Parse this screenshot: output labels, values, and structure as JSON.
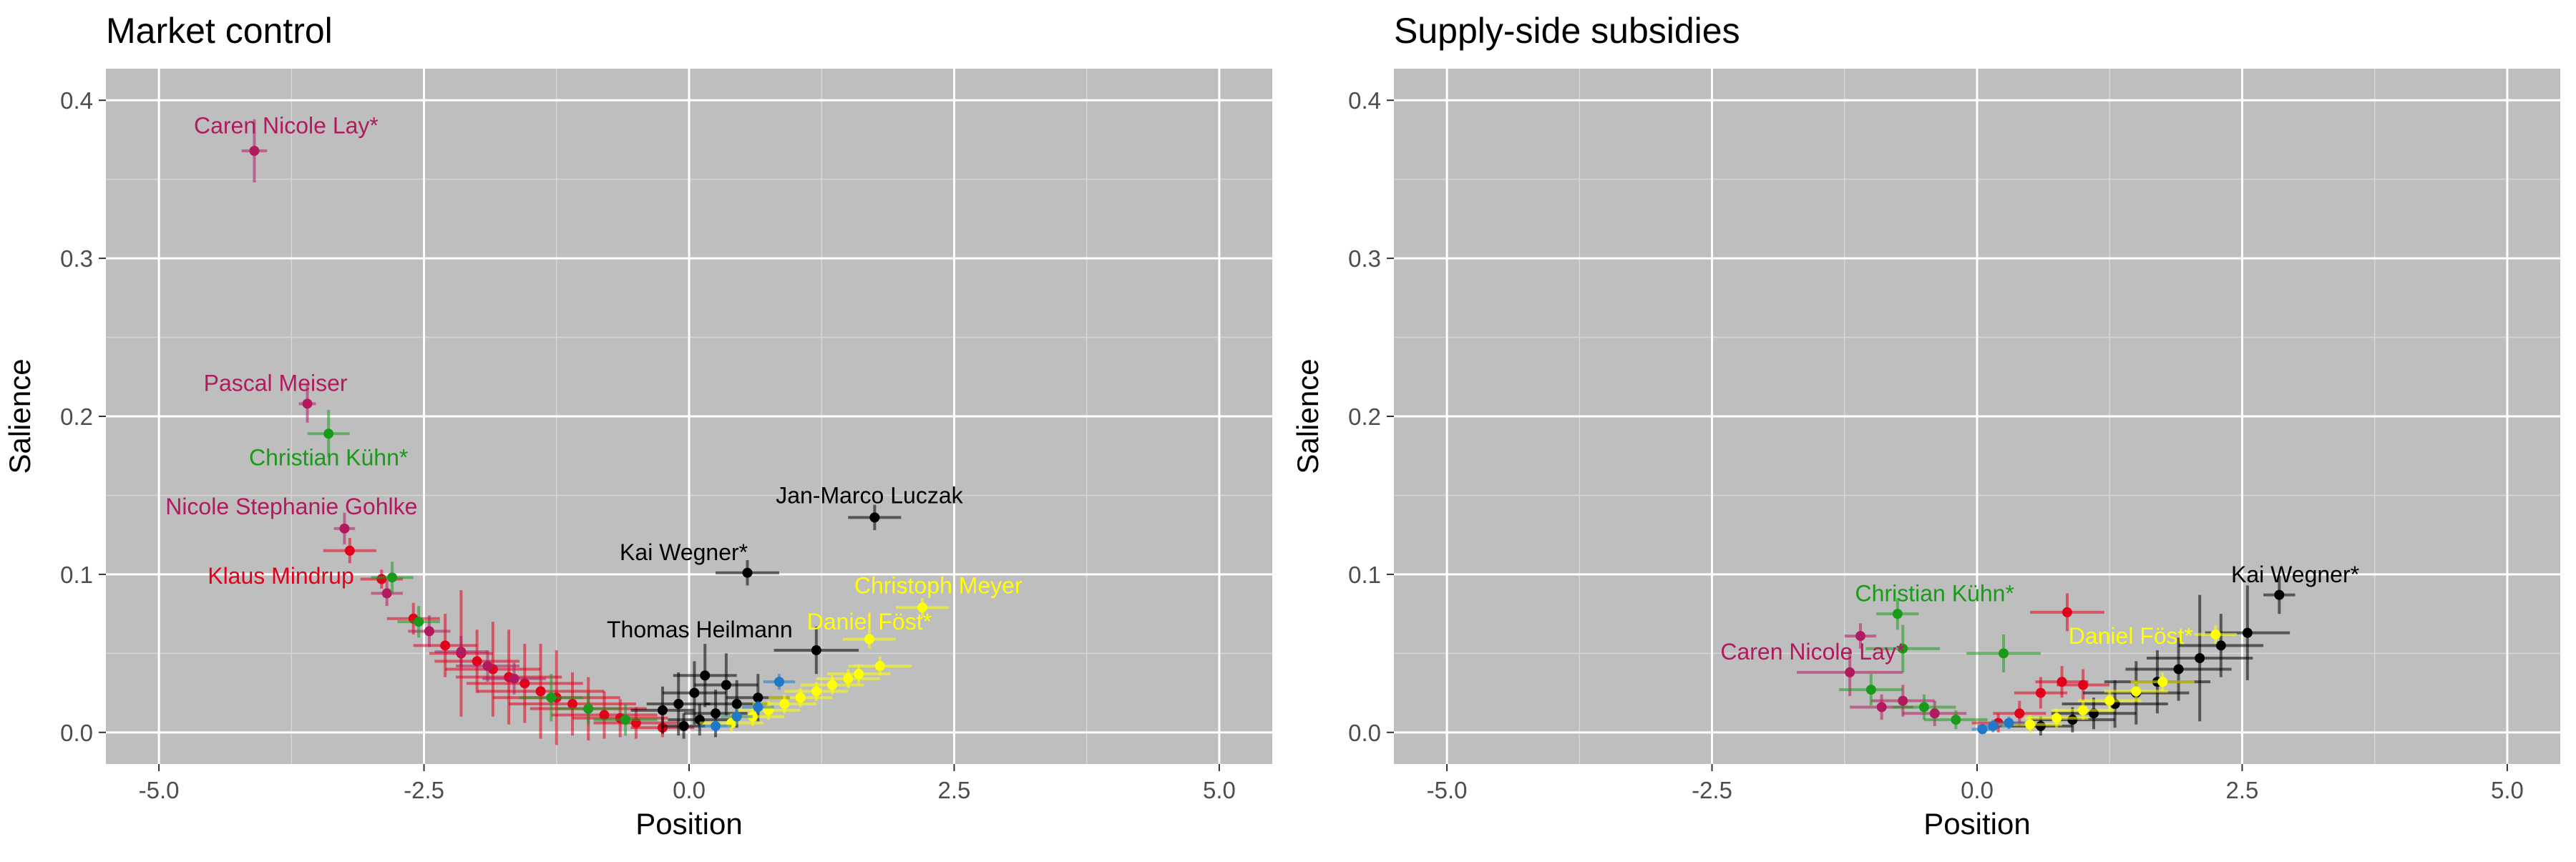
{
  "chart_data": [
    {
      "type": "scatter",
      "title": "Market control",
      "xlabel": "Position",
      "ylabel": "Salience",
      "xlim": [
        -5.5,
        5.5
      ],
      "ylim": [
        -0.02,
        0.42
      ],
      "xticks": [
        -5.0,
        -2.5,
        0.0,
        2.5,
        5.0
      ],
      "xtick_labels": [
        "-5.0",
        "-2.5",
        "0.0",
        "2.5",
        "5.0"
      ],
      "yticks": [
        0.0,
        0.1,
        0.2,
        0.3,
        0.4
      ],
      "ytick_labels": [
        "0.0",
        "0.1",
        "0.2",
        "0.3",
        "0.4"
      ],
      "grid": true,
      "background": "#bebebe",
      "series": [
        {
          "color": "#e3001b",
          "points": [
            [
              -3.2,
              0.115,
              0.25,
              0.008
            ],
            [
              -2.9,
              0.097,
              0.2,
              0.006
            ],
            [
              -2.6,
              0.072,
              0.25,
              0.01
            ],
            [
              -2.3,
              0.055,
              0.3,
              0.02
            ],
            [
              -2.0,
              0.045,
              0.4,
              0.02
            ],
            [
              -1.7,
              0.035,
              0.5,
              0.03
            ],
            [
              -1.4,
              0.026,
              0.6,
              0.03
            ],
            [
              -1.1,
              0.018,
              0.6,
              0.02
            ],
            [
              -0.8,
              0.011,
              0.5,
              0.015
            ],
            [
              -0.5,
              0.006,
              0.4,
              0.01
            ],
            [
              -0.25,
              0.003,
              0.3,
              0.006
            ],
            [
              -2.15,
              0.05,
              0.3,
              0.04
            ],
            [
              -1.85,
              0.04,
              0.45,
              0.03
            ],
            [
              -1.55,
              0.031,
              0.55,
              0.025
            ],
            [
              -1.25,
              0.022,
              0.6,
              0.03
            ],
            [
              -0.95,
              0.015,
              0.55,
              0.02
            ],
            [
              -0.65,
              0.009,
              0.45,
              0.012
            ]
          ]
        },
        {
          "color": "#b3195f",
          "points": [
            [
              -4.1,
              0.368,
              0.12,
              0.02
            ],
            [
              -3.6,
              0.208,
              0.08,
              0.012
            ],
            [
              -3.25,
              0.129,
              0.1,
              0.01
            ],
            [
              -2.85,
              0.088,
              0.15,
              0.008
            ],
            [
              -2.45,
              0.064,
              0.2,
              0.01
            ],
            [
              -2.15,
              0.051,
              0.25,
              0.01
            ],
            [
              -1.9,
              0.042,
              0.3,
              0.01
            ],
            [
              -1.65,
              0.034,
              0.3,
              0.01
            ]
          ]
        },
        {
          "color": "#1a9a1a",
          "points": [
            [
              -3.4,
              0.189,
              0.2,
              0.015
            ],
            [
              -2.8,
              0.098,
              0.2,
              0.01
            ],
            [
              -2.55,
              0.07,
              0.2,
              0.01
            ],
            [
              -1.3,
              0.022,
              0.3,
              0.015
            ],
            [
              -0.95,
              0.015,
              0.3,
              0.01
            ],
            [
              -0.6,
              0.008,
              0.3,
              0.01
            ]
          ]
        },
        {
          "color": "#000000",
          "points": [
            [
              1.75,
              0.136,
              0.25,
              0.008
            ],
            [
              0.55,
              0.101,
              0.3,
              0.008
            ],
            [
              1.2,
              0.052,
              0.4,
              0.015
            ],
            [
              0.15,
              0.036,
              0.3,
              0.02
            ],
            [
              0.35,
              0.03,
              0.3,
              0.02
            ],
            [
              0.05,
              0.025,
              0.3,
              0.02
            ],
            [
              -0.1,
              0.018,
              0.3,
              0.02
            ],
            [
              0.25,
              0.012,
              0.3,
              0.015
            ],
            [
              -0.25,
              0.014,
              0.3,
              0.015
            ],
            [
              0.45,
              0.018,
              0.3,
              0.015
            ],
            [
              0.65,
              0.022,
              0.3,
              0.015
            ],
            [
              0.1,
              0.008,
              0.3,
              0.01
            ],
            [
              -0.05,
              0.004,
              0.2,
              0.008
            ]
          ]
        },
        {
          "color": "#ffff00",
          "points": [
            [
              2.2,
              0.079,
              0.25,
              0.006
            ],
            [
              1.7,
              0.059,
              0.25,
              0.006
            ],
            [
              1.8,
              0.042,
              0.3,
              0.006
            ],
            [
              1.5,
              0.034,
              0.3,
              0.006
            ],
            [
              1.2,
              0.026,
              0.3,
              0.006
            ],
            [
              0.9,
              0.018,
              0.3,
              0.006
            ],
            [
              0.6,
              0.01,
              0.3,
              0.006
            ],
            [
              0.4,
              0.006,
              0.3,
              0.006
            ],
            [
              0.75,
              0.014,
              0.3,
              0.006
            ],
            [
              1.05,
              0.022,
              0.3,
              0.006
            ],
            [
              1.35,
              0.03,
              0.3,
              0.006
            ],
            [
              1.6,
              0.037,
              0.3,
              0.006
            ]
          ]
        },
        {
          "color": "#1f78c8",
          "points": [
            [
              0.85,
              0.032,
              0.15,
              0.005
            ],
            [
              0.45,
              0.01,
              0.15,
              0.005
            ],
            [
              0.25,
              0.004,
              0.15,
              0.004
            ],
            [
              0.65,
              0.016,
              0.15,
              0.004
            ]
          ]
        }
      ],
      "annotations": [
        {
          "text": "Caren Nicole Lay*",
          "x": -3.8,
          "y": 0.384,
          "color": "#b3195f"
        },
        {
          "text": "Pascal Meiser",
          "x": -3.9,
          "y": 0.221,
          "color": "#b3195f"
        },
        {
          "text": "Christian Kühn*",
          "x": -3.4,
          "y": 0.174,
          "color": "#1a9a1a"
        },
        {
          "text": "Nicole Stephanie Gohlke",
          "x": -3.75,
          "y": 0.143,
          "color": "#b3195f"
        },
        {
          "text": "Klaus Mindrup",
          "x": -3.85,
          "y": 0.099,
          "color": "#e3001b"
        },
        {
          "text": "Jan-Marco Luczak",
          "x": 1.7,
          "y": 0.15,
          "color": "#000000"
        },
        {
          "text": "Kai Wegner*",
          "x": -0.05,
          "y": 0.114,
          "color": "#000000"
        },
        {
          "text": "Thomas Heilmann",
          "x": 0.1,
          "y": 0.065,
          "color": "#000000"
        },
        {
          "text": "Christoph Meyer",
          "x": 2.35,
          "y": 0.093,
          "color": "#ffff00"
        },
        {
          "text": "Daniel Föst*",
          "x": 1.7,
          "y": 0.07,
          "color": "#ffff00"
        }
      ]
    },
    {
      "type": "scatter",
      "title": "Supply-side subsidies",
      "xlabel": "Position",
      "ylabel": "Salience",
      "xlim": [
        -5.5,
        5.5
      ],
      "ylim": [
        -0.02,
        0.42
      ],
      "xticks": [
        -5.0,
        -2.5,
        0.0,
        2.5,
        5.0
      ],
      "xtick_labels": [
        "-5.0",
        "-2.5",
        "0.0",
        "2.5",
        "5.0"
      ],
      "yticks": [
        0.0,
        0.1,
        0.2,
        0.3,
        0.4
      ],
      "ytick_labels": [
        "0.0",
        "0.1",
        "0.2",
        "0.3",
        "0.4"
      ],
      "grid": true,
      "background": "#bebebe",
      "series": [
        {
          "color": "#e3001b",
          "points": [
            [
              0.85,
              0.076,
              0.35,
              0.012
            ],
            [
              0.8,
              0.032,
              0.25,
              0.01
            ],
            [
              0.6,
              0.025,
              0.25,
              0.01
            ],
            [
              0.4,
              0.012,
              0.25,
              0.008
            ],
            [
              0.2,
              0.006,
              0.25,
              0.006
            ],
            [
              1.0,
              0.03,
              0.25,
              0.01
            ]
          ]
        },
        {
          "color": "#b3195f",
          "points": [
            [
              -1.1,
              0.061,
              0.15,
              0.008
            ],
            [
              -1.2,
              0.038,
              0.5,
              0.015
            ],
            [
              -0.7,
              0.02,
              0.3,
              0.01
            ],
            [
              -0.4,
              0.012,
              0.3,
              0.008
            ],
            [
              -0.9,
              0.016,
              0.3,
              0.008
            ]
          ]
        },
        {
          "color": "#1a9a1a",
          "points": [
            [
              -0.75,
              0.075,
              0.2,
              0.01
            ],
            [
              -0.7,
              0.053,
              0.35,
              0.015
            ],
            [
              0.25,
              0.05,
              0.35,
              0.012
            ],
            [
              -1.0,
              0.027,
              0.3,
              0.01
            ],
            [
              -0.5,
              0.016,
              0.3,
              0.008
            ],
            [
              -0.2,
              0.008,
              0.3,
              0.006
            ]
          ]
        },
        {
          "color": "#000000",
          "points": [
            [
              2.85,
              0.087,
              0.15,
              0.012
            ],
            [
              2.55,
              0.063,
              0.4,
              0.03
            ],
            [
              2.3,
              0.055,
              0.4,
              0.02
            ],
            [
              2.1,
              0.047,
              0.5,
              0.04
            ],
            [
              1.9,
              0.04,
              0.5,
              0.02
            ],
            [
              1.7,
              0.032,
              0.5,
              0.02
            ],
            [
              1.5,
              0.025,
              0.5,
              0.02
            ],
            [
              1.3,
              0.018,
              0.5,
              0.015
            ],
            [
              1.1,
              0.012,
              0.4,
              0.01
            ],
            [
              0.9,
              0.008,
              0.4,
              0.008
            ],
            [
              0.6,
              0.004,
              0.3,
              0.006
            ]
          ]
        },
        {
          "color": "#ffff00",
          "points": [
            [
              2.25,
              0.062,
              0.2,
              0.006
            ],
            [
              1.75,
              0.032,
              0.3,
              0.006
            ],
            [
              1.5,
              0.026,
              0.3,
              0.006
            ],
            [
              1.25,
              0.02,
              0.3,
              0.006
            ],
            [
              1.0,
              0.014,
              0.3,
              0.006
            ],
            [
              0.75,
              0.009,
              0.3,
              0.006
            ],
            [
              0.5,
              0.005,
              0.3,
              0.006
            ]
          ]
        },
        {
          "color": "#1f78c8",
          "points": [
            [
              0.15,
              0.004,
              0.15,
              0.004
            ],
            [
              0.3,
              0.006,
              0.15,
              0.004
            ],
            [
              0.05,
              0.002,
              0.1,
              0.003
            ]
          ]
        }
      ],
      "annotations": [
        {
          "text": "Christian Kühn*",
          "x": -0.4,
          "y": 0.088,
          "color": "#1a9a1a"
        },
        {
          "text": "Caren Nicole Lay*",
          "x": -1.55,
          "y": 0.051,
          "color": "#b3195f"
        },
        {
          "text": "Daniel Föst*",
          "x": 1.45,
          "y": 0.061,
          "color": "#ffff00"
        },
        {
          "text": "Kai Wegner*",
          "x": 3.0,
          "y": 0.1,
          "color": "#000000"
        }
      ]
    }
  ]
}
